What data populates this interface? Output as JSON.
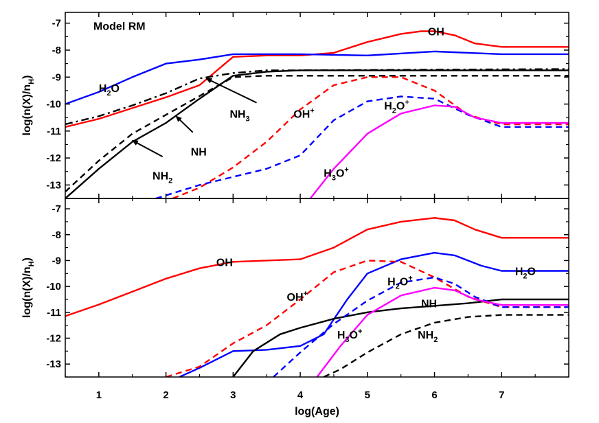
{
  "chart_data": {
    "type": "line",
    "x_label": "log(Age)",
    "x_ticks": [
      1,
      2,
      3,
      4,
      5,
      6,
      7
    ],
    "xlim": [
      0.5,
      8.0
    ],
    "y_ticks": [
      -7,
      -8,
      -9,
      -10,
      -11,
      -12,
      -13
    ],
    "y_label": {
      "main": "log(n(X)/n",
      "sub": "H",
      "close": ")"
    },
    "panels": [
      {
        "name": "top",
        "title": "Model RM",
        "ylim": [
          -13.5,
          -6.6
        ],
        "series": [
          {
            "name": "OH",
            "color": "#ff0000",
            "dash": "solid",
            "points": [
              [
                0.5,
                -10.85
              ],
              [
                1,
                -10.55
              ],
              [
                1.5,
                -10.15
              ],
              [
                2,
                -9.75
              ],
              [
                2.5,
                -9.3
              ],
              [
                3,
                -8.25
              ],
              [
                3.5,
                -8.2
              ],
              [
                4,
                -8.2
              ],
              [
                4.5,
                -8.1
              ],
              [
                5,
                -7.7
              ],
              [
                5.5,
                -7.4
              ],
              [
                5.8,
                -7.3
              ],
              [
                6,
                -7.3
              ],
              [
                6.3,
                -7.45
              ],
              [
                6.6,
                -7.75
              ],
              [
                7,
                -7.88
              ],
              [
                8,
                -7.88
              ]
            ]
          },
          {
            "name": "H2O",
            "color": "#0000ff",
            "dash": "solid",
            "points": [
              [
                0.5,
                -10
              ],
              [
                1,
                -9.55
              ],
              [
                1.5,
                -9
              ],
              [
                2,
                -8.5
              ],
              [
                2.5,
                -8.35
              ],
              [
                3,
                -8.15
              ],
              [
                4,
                -8.15
              ],
              [
                5,
                -8.2
              ],
              [
                6,
                -8.05
              ],
              [
                6.5,
                -8.1
              ],
              [
                7,
                -8.15
              ],
              [
                8,
                -8.15
              ]
            ]
          },
          {
            "name": "NH3",
            "color": "#000000",
            "dash": "dashdot",
            "points": [
              [
                0.5,
                -10.75
              ],
              [
                1,
                -10.45
              ],
              [
                1.5,
                -10.05
              ],
              [
                2,
                -9.6
              ],
              [
                2.5,
                -9.05
              ],
              [
                3,
                -8.85
              ],
              [
                3.5,
                -8.75
              ],
              [
                4,
                -8.75
              ],
              [
                8,
                -8.7
              ]
            ]
          },
          {
            "name": "NH",
            "color": "#000000",
            "dash": "solid",
            "points": [
              [
                0.5,
                -13.5
              ],
              [
                1,
                -12.4
              ],
              [
                1.5,
                -11.4
              ],
              [
                2,
                -10.7
              ],
              [
                2.5,
                -9.8
              ],
              [
                3,
                -8.95
              ],
              [
                3.5,
                -8.8
              ],
              [
                4,
                -8.75
              ],
              [
                8,
                -8.75
              ]
            ]
          },
          {
            "name": "NH2",
            "color": "#000000",
            "dash": "dashed",
            "points": [
              [
                0.5,
                -13.25
              ],
              [
                1,
                -12.1
              ],
              [
                1.5,
                -11.1
              ],
              [
                2,
                -10.4
              ],
              [
                2.5,
                -9.7
              ],
              [
                3,
                -9.0
              ],
              [
                3.5,
                -8.95
              ],
              [
                4,
                -8.95
              ],
              [
                8,
                -8.95
              ]
            ]
          },
          {
            "name": "OH+",
            "color": "#ff0000",
            "dash": "dashed",
            "points": [
              [
                2.1,
                -13.5
              ],
              [
                2.5,
                -13.1
              ],
              [
                3,
                -12.35
              ],
              [
                3.5,
                -11.4
              ],
              [
                4,
                -10.2
              ],
              [
                4.5,
                -9.3
              ],
              [
                5,
                -9.0
              ],
              [
                5.5,
                -9.0
              ],
              [
                6,
                -9.5
              ],
              [
                6.5,
                -10.4
              ],
              [
                7,
                -10.75
              ],
              [
                8,
                -10.75
              ]
            ]
          },
          {
            "name": "H2O+",
            "color": "#0000ff",
            "dash": "dashed",
            "points": [
              [
                1.85,
                -13.5
              ],
              [
                2.5,
                -13.0
              ],
              [
                3,
                -12.7
              ],
              [
                3.5,
                -12.4
              ],
              [
                4,
                -11.9
              ],
              [
                4.5,
                -10.6
              ],
              [
                5,
                -9.9
              ],
              [
                5.5,
                -9.72
              ],
              [
                6,
                -9.8
              ],
              [
                6.5,
                -10.4
              ],
              [
                7,
                -10.85
              ],
              [
                8,
                -10.85
              ]
            ]
          },
          {
            "name": "H3O+",
            "color": "#ff00ff",
            "dash": "solid",
            "points": [
              [
                4.15,
                -13.5
              ],
              [
                4.5,
                -12.4
              ],
              [
                5,
                -11.1
              ],
              [
                5.5,
                -10.35
              ],
              [
                6,
                -10.05
              ],
              [
                6.3,
                -10.1
              ],
              [
                6.6,
                -10.5
              ],
              [
                7,
                -10.7
              ],
              [
                8,
                -10.7
              ]
            ]
          }
        ],
        "labels": [
          {
            "text": "OH",
            "x": 5.9,
            "y": -7.3
          },
          {
            "text": "H",
            "sub": "2",
            "rest": "O",
            "x": 1.0,
            "y": -9.4
          },
          {
            "text": "NH",
            "sub": "3",
            "x": 2.95,
            "y": -10.35
          },
          {
            "text": "OH",
            "sup": "+",
            "x": 3.9,
            "y": -10.35
          },
          {
            "text": "H",
            "sub": "2",
            "rest": "O",
            "sup2": "+",
            "x": 5.25,
            "y": -10.05
          },
          {
            "text": "NH",
            "x": 2.37,
            "y": -11.75
          },
          {
            "text": "NH",
            "sub": "2",
            "x": 1.8,
            "y": -12.65
          },
          {
            "text": "H",
            "sub": "3",
            "rest": "O",
            "sup2": "+",
            "x": 4.35,
            "y": -12.55
          }
        ],
        "arrows": [
          {
            "from": [
              3.35,
              -9.95
            ],
            "to": [
              2.6,
              -9.05
            ]
          },
          {
            "from": [
              2.4,
              -11.05
            ],
            "to": [
              2.15,
              -10.45
            ]
          },
          {
            "from": [
              1.95,
              -11.95
            ],
            "to": [
              1.5,
              -11.35
            ]
          }
        ]
      },
      {
        "name": "bottom",
        "title": "",
        "ylim": [
          -13.5,
          -6.6
        ],
        "series": [
          {
            "name": "OH",
            "color": "#ff0000",
            "dash": "solid",
            "points": [
              [
                0.5,
                -11.15
              ],
              [
                1,
                -10.7
              ],
              [
                1.5,
                -10.2
              ],
              [
                2,
                -9.7
              ],
              [
                2.5,
                -9.3
              ],
              [
                3,
                -9.05
              ],
              [
                3.5,
                -9.0
              ],
              [
                4,
                -8.95
              ],
              [
                4.5,
                -8.5
              ],
              [
                5,
                -7.8
              ],
              [
                5.5,
                -7.5
              ],
              [
                6,
                -7.35
              ],
              [
                6.3,
                -7.45
              ],
              [
                6.6,
                -7.8
              ],
              [
                7,
                -8.12
              ],
              [
                8,
                -8.12
              ]
            ]
          },
          {
            "name": "H2O",
            "color": "#0000ff",
            "dash": "solid",
            "points": [
              [
                2.2,
                -13.5
              ],
              [
                2.5,
                -13.15
              ],
              [
                3,
                -12.5
              ],
              [
                3.5,
                -12.45
              ],
              [
                4,
                -12.3
              ],
              [
                4.35,
                -11.85
              ],
              [
                4.7,
                -10.5
              ],
              [
                5,
                -9.5
              ],
              [
                5.5,
                -8.95
              ],
              [
                6,
                -8.7
              ],
              [
                6.3,
                -8.8
              ],
              [
                6.7,
                -9.2
              ],
              [
                7,
                -9.4
              ],
              [
                8,
                -9.4
              ]
            ]
          },
          {
            "name": "NH",
            "color": "#000000",
            "dash": "solid",
            "points": [
              [
                3.0,
                -13.5
              ],
              [
                3.3,
                -12.5
              ],
              [
                3.7,
                -11.85
              ],
              [
                4,
                -11.6
              ],
              [
                4.5,
                -11.25
              ],
              [
                5,
                -11.0
              ],
              [
                5.5,
                -10.85
              ],
              [
                6,
                -10.75
              ],
              [
                6.5,
                -10.65
              ],
              [
                7,
                -10.5
              ],
              [
                8,
                -10.5
              ]
            ]
          },
          {
            "name": "NH2",
            "color": "#000000",
            "dash": "dashed",
            "points": [
              [
                4.35,
                -13.5
              ],
              [
                4.6,
                -13.2
              ],
              [
                5,
                -12.55
              ],
              [
                5.5,
                -11.85
              ],
              [
                6,
                -11.4
              ],
              [
                6.5,
                -11.18
              ],
              [
                7,
                -11.1
              ],
              [
                8,
                -11.1
              ]
            ]
          },
          {
            "name": "OH+",
            "color": "#ff0000",
            "dash": "dashed",
            "points": [
              [
                2.0,
                -13.5
              ],
              [
                2.5,
                -13.1
              ],
              [
                3,
                -12.2
              ],
              [
                3.5,
                -11.5
              ],
              [
                4,
                -10.5
              ],
              [
                4.5,
                -9.45
              ],
              [
                5,
                -9.0
              ],
              [
                5.5,
                -9.05
              ],
              [
                6,
                -9.65
              ],
              [
                6.5,
                -10.4
              ],
              [
                7,
                -10.8
              ],
              [
                8,
                -10.8
              ]
            ]
          },
          {
            "name": "H2O+",
            "color": "#0000ff",
            "dash": "dashed",
            "points": [
              [
                3.6,
                -13.5
              ],
              [
                4,
                -12.55
              ],
              [
                4.5,
                -11.45
              ],
              [
                5,
                -10.55
              ],
              [
                5.5,
                -9.85
              ],
              [
                6,
                -9.65
              ],
              [
                6.3,
                -9.9
              ],
              [
                6.6,
                -10.4
              ],
              [
                7,
                -10.8
              ],
              [
                8,
                -10.8
              ]
            ]
          },
          {
            "name": "H3O+",
            "color": "#ff00ff",
            "dash": "solid",
            "points": [
              [
                4.25,
                -13.5
              ],
              [
                4.6,
                -12.3
              ],
              [
                5,
                -11.1
              ],
              [
                5.5,
                -10.35
              ],
              [
                6,
                -10.05
              ],
              [
                6.3,
                -10.15
              ],
              [
                6.6,
                -10.5
              ],
              [
                7,
                -10.72
              ],
              [
                8,
                -10.72
              ]
            ]
          }
        ],
        "labels": [
          {
            "text": "OH",
            "x": 2.75,
            "y": -9.05
          },
          {
            "text": "H",
            "sub": "2",
            "rest": "O",
            "x": 7.2,
            "y": -9.4
          },
          {
            "text": "OH",
            "sup": "+",
            "x": 3.8,
            "y": -10.4
          },
          {
            "text": "H",
            "sub": "2",
            "rest": "O",
            "sup2": "+",
            "x": 5.3,
            "y": -9.8
          },
          {
            "text": "NH",
            "x": 5.8,
            "y": -10.65
          },
          {
            "text": "H",
            "sub": "3",
            "rest": "O",
            "sup2": "+",
            "x": 4.55,
            "y": -11.85
          },
          {
            "text": "NH",
            "sub": "2",
            "x": 5.75,
            "y": -11.85
          }
        ],
        "arrows": []
      }
    ]
  }
}
